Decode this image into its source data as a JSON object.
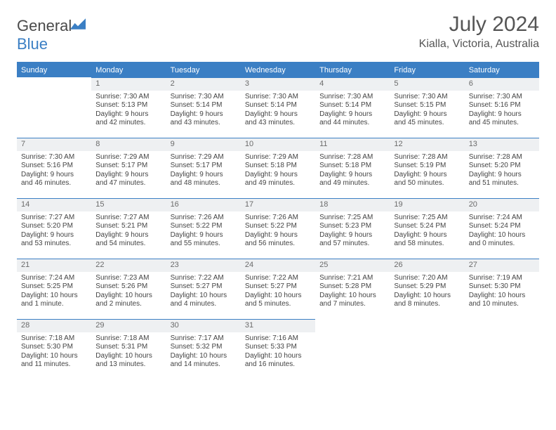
{
  "logo": {
    "word1": "General",
    "word2": "Blue"
  },
  "title": "July 2024",
  "location": "Kialla, Victoria, Australia",
  "colors": {
    "accent": "#3b7fc4",
    "daynum_bg": "#eef0f2",
    "text": "#444",
    "header_text": "#ffffff"
  },
  "weekdays": [
    "Sunday",
    "Monday",
    "Tuesday",
    "Wednesday",
    "Thursday",
    "Friday",
    "Saturday"
  ],
  "label": {
    "sunrise": "Sunrise: ",
    "sunset": "Sunset: ",
    "daylight": "Daylight: "
  },
  "weeks": [
    [
      null,
      {
        "n": "1",
        "sr": "7:30 AM",
        "ss": "5:13 PM",
        "d1": "9 hours",
        "d2": "and 42 minutes."
      },
      {
        "n": "2",
        "sr": "7:30 AM",
        "ss": "5:14 PM",
        "d1": "9 hours",
        "d2": "and 43 minutes."
      },
      {
        "n": "3",
        "sr": "7:30 AM",
        "ss": "5:14 PM",
        "d1": "9 hours",
        "d2": "and 43 minutes."
      },
      {
        "n": "4",
        "sr": "7:30 AM",
        "ss": "5:14 PM",
        "d1": "9 hours",
        "d2": "and 44 minutes."
      },
      {
        "n": "5",
        "sr": "7:30 AM",
        "ss": "5:15 PM",
        "d1": "9 hours",
        "d2": "and 45 minutes."
      },
      {
        "n": "6",
        "sr": "7:30 AM",
        "ss": "5:16 PM",
        "d1": "9 hours",
        "d2": "and 45 minutes."
      }
    ],
    [
      {
        "n": "7",
        "sr": "7:30 AM",
        "ss": "5:16 PM",
        "d1": "9 hours",
        "d2": "and 46 minutes."
      },
      {
        "n": "8",
        "sr": "7:29 AM",
        "ss": "5:17 PM",
        "d1": "9 hours",
        "d2": "and 47 minutes."
      },
      {
        "n": "9",
        "sr": "7:29 AM",
        "ss": "5:17 PM",
        "d1": "9 hours",
        "d2": "and 48 minutes."
      },
      {
        "n": "10",
        "sr": "7:29 AM",
        "ss": "5:18 PM",
        "d1": "9 hours",
        "d2": "and 49 minutes."
      },
      {
        "n": "11",
        "sr": "7:28 AM",
        "ss": "5:18 PM",
        "d1": "9 hours",
        "d2": "and 49 minutes."
      },
      {
        "n": "12",
        "sr": "7:28 AM",
        "ss": "5:19 PM",
        "d1": "9 hours",
        "d2": "and 50 minutes."
      },
      {
        "n": "13",
        "sr": "7:28 AM",
        "ss": "5:20 PM",
        "d1": "9 hours",
        "d2": "and 51 minutes."
      }
    ],
    [
      {
        "n": "14",
        "sr": "7:27 AM",
        "ss": "5:20 PM",
        "d1": "9 hours",
        "d2": "and 53 minutes."
      },
      {
        "n": "15",
        "sr": "7:27 AM",
        "ss": "5:21 PM",
        "d1": "9 hours",
        "d2": "and 54 minutes."
      },
      {
        "n": "16",
        "sr": "7:26 AM",
        "ss": "5:22 PM",
        "d1": "9 hours",
        "d2": "and 55 minutes."
      },
      {
        "n": "17",
        "sr": "7:26 AM",
        "ss": "5:22 PM",
        "d1": "9 hours",
        "d2": "and 56 minutes."
      },
      {
        "n": "18",
        "sr": "7:25 AM",
        "ss": "5:23 PM",
        "d1": "9 hours",
        "d2": "and 57 minutes."
      },
      {
        "n": "19",
        "sr": "7:25 AM",
        "ss": "5:24 PM",
        "d1": "9 hours",
        "d2": "and 58 minutes."
      },
      {
        "n": "20",
        "sr": "7:24 AM",
        "ss": "5:24 PM",
        "d1": "10 hours",
        "d2": "and 0 minutes."
      }
    ],
    [
      {
        "n": "21",
        "sr": "7:24 AM",
        "ss": "5:25 PM",
        "d1": "10 hours",
        "d2": "and 1 minute."
      },
      {
        "n": "22",
        "sr": "7:23 AM",
        "ss": "5:26 PM",
        "d1": "10 hours",
        "d2": "and 2 minutes."
      },
      {
        "n": "23",
        "sr": "7:22 AM",
        "ss": "5:27 PM",
        "d1": "10 hours",
        "d2": "and 4 minutes."
      },
      {
        "n": "24",
        "sr": "7:22 AM",
        "ss": "5:27 PM",
        "d1": "10 hours",
        "d2": "and 5 minutes."
      },
      {
        "n": "25",
        "sr": "7:21 AM",
        "ss": "5:28 PM",
        "d1": "10 hours",
        "d2": "and 7 minutes."
      },
      {
        "n": "26",
        "sr": "7:20 AM",
        "ss": "5:29 PM",
        "d1": "10 hours",
        "d2": "and 8 minutes."
      },
      {
        "n": "27",
        "sr": "7:19 AM",
        "ss": "5:30 PM",
        "d1": "10 hours",
        "d2": "and 10 minutes."
      }
    ],
    [
      {
        "n": "28",
        "sr": "7:18 AM",
        "ss": "5:30 PM",
        "d1": "10 hours",
        "d2": "and 11 minutes."
      },
      {
        "n": "29",
        "sr": "7:18 AM",
        "ss": "5:31 PM",
        "d1": "10 hours",
        "d2": "and 13 minutes."
      },
      {
        "n": "30",
        "sr": "7:17 AM",
        "ss": "5:32 PM",
        "d1": "10 hours",
        "d2": "and 14 minutes."
      },
      {
        "n": "31",
        "sr": "7:16 AM",
        "ss": "5:33 PM",
        "d1": "10 hours",
        "d2": "and 16 minutes."
      },
      null,
      null,
      null
    ]
  ]
}
